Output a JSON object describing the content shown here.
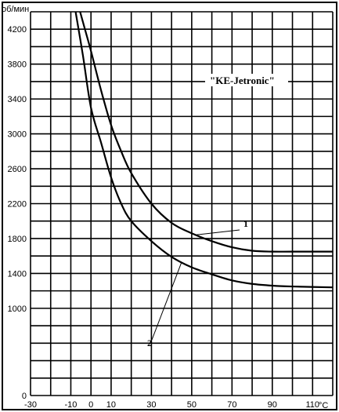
{
  "chart_data": {
    "type": "line",
    "title": "\"KE-Jetronic\"",
    "ylabel": "об/мин",
    "xlabel": "°С",
    "xlim": [
      -30,
      120
    ],
    "ylim": [
      0,
      4400
    ],
    "x_ticks": [
      -30,
      -10,
      0,
      10,
      30,
      50,
      70,
      90,
      110
    ],
    "x_tick_labels": [
      "-30",
      "-10",
      "0",
      "10",
      "30",
      "50",
      "70",
      "90",
      "110"
    ],
    "y_ticks": [
      0,
      1000,
      1400,
      1800,
      2200,
      2600,
      3000,
      3400,
      3800,
      4200
    ],
    "y_tick_labels": [
      "0",
      "1000",
      "1400",
      "1800",
      "2200",
      "2600",
      "3000",
      "3400",
      "3800",
      "4200"
    ],
    "grid": true,
    "series": [
      {
        "name": "1",
        "x": [
          -6,
          -3,
          0,
          5,
          10,
          15,
          20,
          30,
          40,
          50,
          60,
          70,
          80,
          90,
          100,
          120
        ],
        "y": [
          4450,
          4200,
          3950,
          3500,
          3100,
          2800,
          2550,
          2200,
          1980,
          1860,
          1770,
          1700,
          1660,
          1650,
          1650,
          1650
        ]
      },
      {
        "name": "2",
        "x": [
          -8,
          -4,
          0,
          5,
          10,
          15,
          20,
          30,
          40,
          50,
          60,
          70,
          80,
          90,
          100,
          120
        ],
        "y": [
          4450,
          3900,
          3300,
          2900,
          2500,
          2200,
          2000,
          1770,
          1590,
          1470,
          1390,
          1320,
          1280,
          1260,
          1250,
          1240
        ]
      }
    ],
    "annotations": [
      {
        "text": "1",
        "series": "1",
        "at_x": 52
      },
      {
        "text": "2",
        "series": "2",
        "at_x": 45
      }
    ]
  }
}
